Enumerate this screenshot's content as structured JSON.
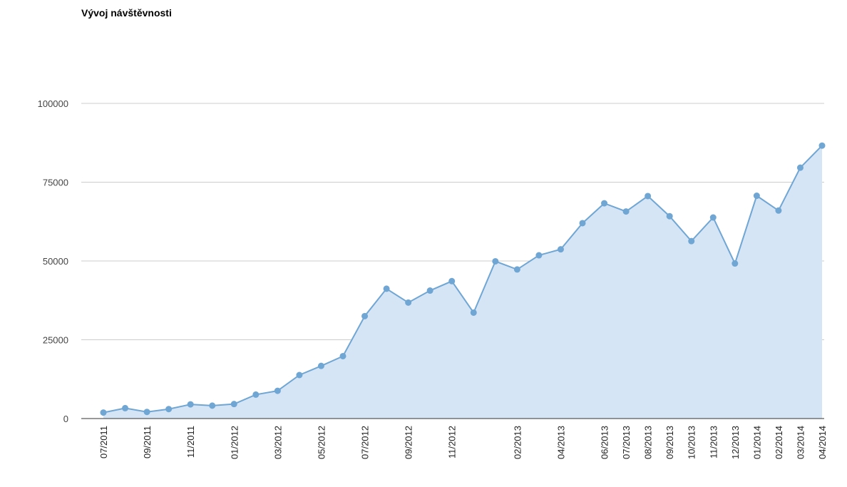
{
  "chart_data": {
    "type": "area",
    "title": "Vývoj návštěvnosti",
    "xlabel": "",
    "ylabel": "",
    "ylim": [
      0,
      100000
    ],
    "y_ticks": [
      0,
      25000,
      50000,
      75000,
      100000
    ],
    "grid": true,
    "legend": "none",
    "x_tick_labels": [
      {
        "index": 0,
        "label": "07/2011"
      },
      {
        "index": 2,
        "label": "09/2011"
      },
      {
        "index": 4,
        "label": "11/2011"
      },
      {
        "index": 6,
        "label": "01/2012"
      },
      {
        "index": 8,
        "label": "03/2012"
      },
      {
        "index": 10,
        "label": "05/2012"
      },
      {
        "index": 12,
        "label": "07/2012"
      },
      {
        "index": 14,
        "label": "09/2012"
      },
      {
        "index": 16,
        "label": "11/2012"
      },
      {
        "index": 19,
        "label": "02/2013"
      },
      {
        "index": 21,
        "label": "04/2013"
      },
      {
        "index": 23,
        "label": "06/2013"
      },
      {
        "index": 24,
        "label": "07/2013"
      },
      {
        "index": 25,
        "label": "08/2013"
      },
      {
        "index": 26,
        "label": "09/2013"
      },
      {
        "index": 27,
        "label": "10/2013"
      },
      {
        "index": 28,
        "label": "11/2013"
      },
      {
        "index": 29,
        "label": "12/2013"
      },
      {
        "index": 30,
        "label": "01/2014"
      },
      {
        "index": 31,
        "label": "02/2014"
      },
      {
        "index": 32,
        "label": "03/2014"
      },
      {
        "index": 33,
        "label": "04/2014"
      }
    ],
    "values": [
      1900,
      3300,
      2100,
      3000,
      4500,
      4100,
      4600,
      7600,
      8800,
      13800,
      16700,
      19800,
      32500,
      41200,
      36800,
      40600,
      43600,
      33600,
      49900,
      47300,
      51800,
      53700,
      62000,
      68300,
      65700,
      70600,
      64200,
      56300,
      63800,
      49200,
      70700,
      66000,
      79600,
      86600
    ],
    "colors": {
      "line": "#6fa6d3",
      "fill": "#d5e5f5",
      "marker": "#6fa6d3",
      "grid": "#cccccc",
      "axis": "#333333"
    }
  }
}
